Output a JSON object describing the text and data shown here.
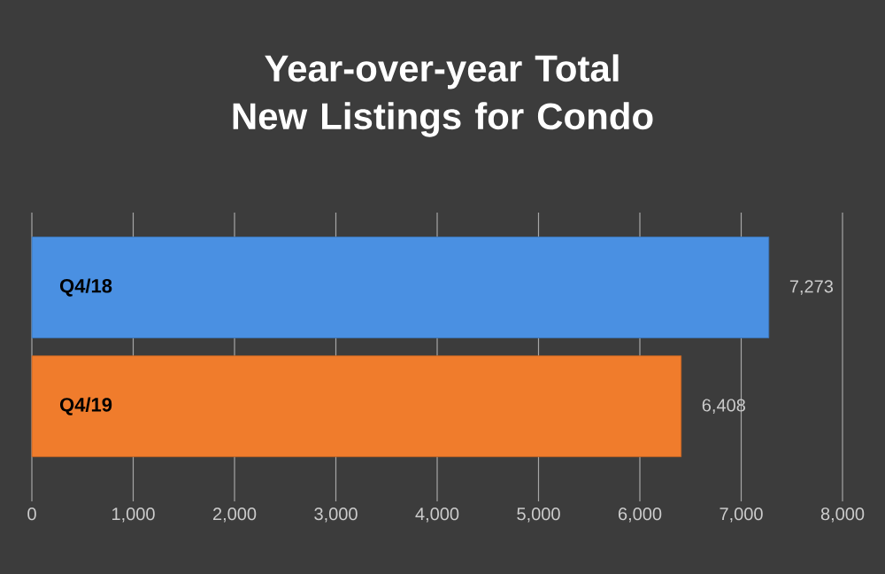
{
  "chart_data": {
    "type": "bar",
    "orientation": "horizontal",
    "title": "Year-over-year Total New Listings for Condo",
    "categories": [
      "Q4/18",
      "Q4/19"
    ],
    "values": [
      7273,
      6408
    ],
    "colors": [
      "#4a90e2",
      "#f07c2c"
    ],
    "value_labels": [
      "7,273",
      "6,408"
    ],
    "xlim": [
      0,
      8000
    ],
    "xticks": [
      0,
      {
        "value": 1000,
        "label": "1,000"
      },
      {
        "value": 2000,
        "label": "2,000"
      },
      {
        "value": 3000,
        "label": "3,000"
      },
      {
        "value": 4000,
        "label": "4,000"
      },
      {
        "value": 5000,
        "label": "5,000"
      },
      {
        "value": 6000,
        "label": "6,000"
      },
      {
        "value": 7000,
        "label": "7,000"
      },
      {
        "value": 8000,
        "label": "8,000"
      }
    ],
    "grid": "x"
  }
}
